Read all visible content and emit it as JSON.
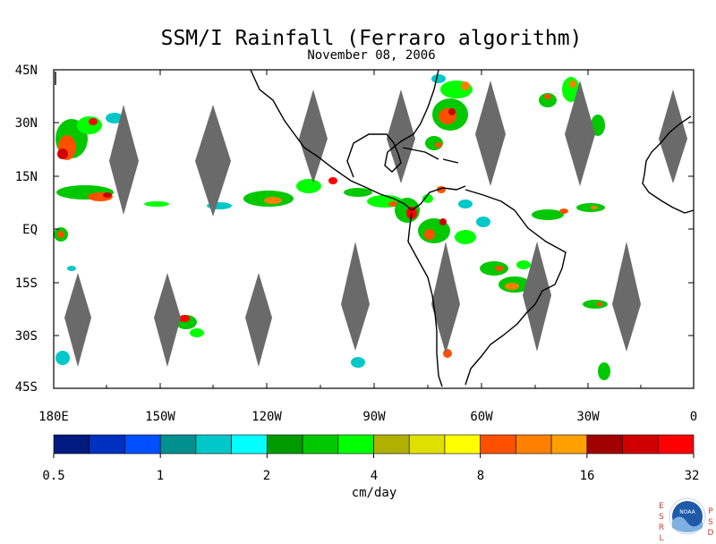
{
  "title": "SSM/I Rainfall (Ferraro algorithm)",
  "date": "November 08, 2006",
  "lat_labels": [
    "45N",
    "30N",
    "15N",
    "EQ",
    "15S",
    "30S",
    "45S"
  ],
  "lon_labels": [
    "180E",
    "150W",
    "120W",
    "90W",
    "60W",
    "30W",
    "0"
  ],
  "colorbar": {
    "colors": [
      "#001a80",
      "#0030c0",
      "#0050ff",
      "#009090",
      "#00c8c8",
      "#00ffff",
      "#009a00",
      "#00c800",
      "#00ff00",
      "#b0b000",
      "#e0e000",
      "#ffff00",
      "#ff5000",
      "#ff8000",
      "#ffa000",
      "#a00000",
      "#d00000",
      "#ff0000"
    ],
    "tick_labels": [
      "0.5",
      "1",
      "2",
      "4",
      "8",
      "16",
      "32"
    ],
    "unit": "cm/day"
  },
  "logo": {
    "left_letters": [
      "E",
      "S",
      "R",
      "L"
    ],
    "right_letters": [
      "P",
      "S",
      "D"
    ],
    "badge_text": "NOAA"
  }
}
